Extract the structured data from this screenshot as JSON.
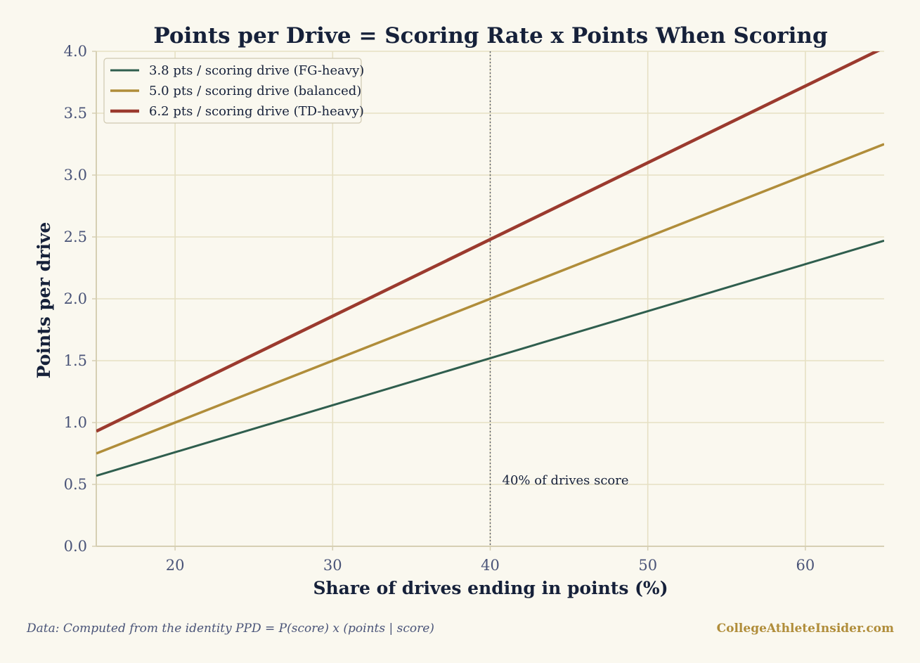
{
  "chart_data": {
    "type": "line",
    "title": "Points per Drive = Scoring Rate x Points When Scoring",
    "xlabel": "Share of drives ending in points (%)",
    "ylabel": "Points per drive",
    "xlim": [
      15,
      65
    ],
    "ylim": [
      0,
      4
    ],
    "xticks": [
      20,
      30,
      40,
      50,
      60
    ],
    "yticks": [
      0.0,
      0.5,
      1.0,
      1.5,
      2.0,
      2.5,
      3.0,
      3.5,
      4.0
    ],
    "x": [
      15,
      65
    ],
    "series": [
      {
        "name": "3.8 pts / scoring drive (FG-heavy)",
        "color": "#2f5e4e",
        "values": [
          0.57,
          2.47
        ]
      },
      {
        "name": "5.0 pts / scoring drive (balanced)",
        "color": "#b08d3a",
        "values": [
          0.75,
          3.25
        ]
      },
      {
        "name": "6.2 pts / scoring drive (TD-heavy)",
        "color": "#9b3a2e",
        "values": [
          0.93,
          4.03
        ]
      }
    ],
    "reference_line": {
      "x": 40,
      "label": "40% of drives score"
    },
    "grid": true,
    "legend_position": "top-left"
  },
  "footer": {
    "source": "Data: Computed from the identity PPD = P(score) x (points | score)",
    "brand": "CollegeAthleteInsider.com"
  }
}
